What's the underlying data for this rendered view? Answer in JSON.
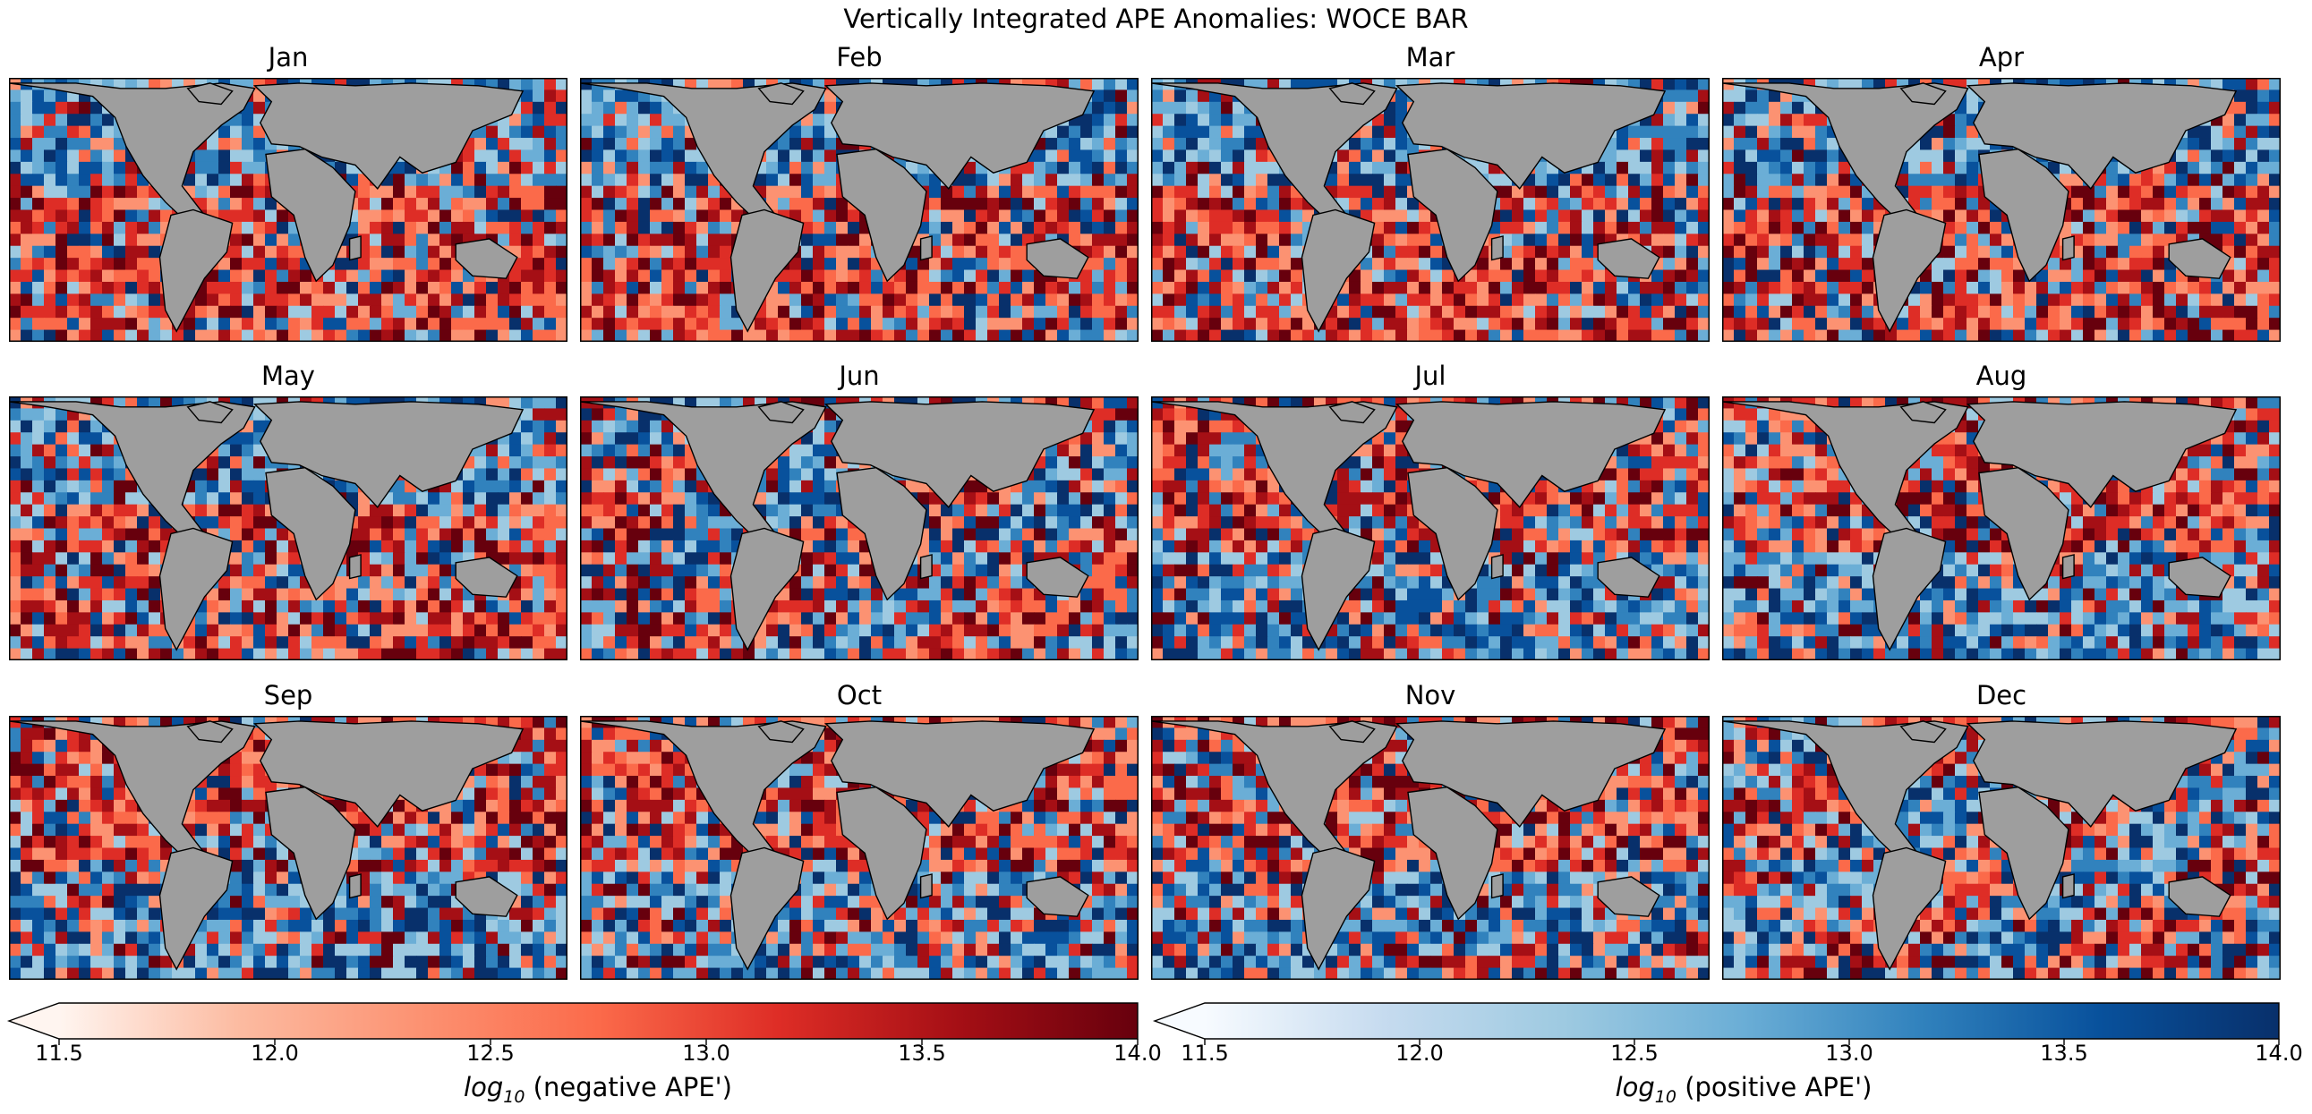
{
  "title": "Vertically Integrated APE Anomalies: WOCE BAR",
  "chart_data": {
    "type": "heatmap",
    "title": "Vertically Integrated APE Anomalies: WOCE BAR",
    "panels": [
      {
        "label": "Jan",
        "regime": "neg-south"
      },
      {
        "label": "Feb",
        "regime": "neg-south"
      },
      {
        "label": "Mar",
        "regime": "neg-south"
      },
      {
        "label": "Apr",
        "regime": "neg-south"
      },
      {
        "label": "May",
        "regime": "neg-south"
      },
      {
        "label": "Jun",
        "regime": "mixed"
      },
      {
        "label": "Jul",
        "regime": "neg-north"
      },
      {
        "label": "Aug",
        "regime": "neg-north"
      },
      {
        "label": "Sep",
        "regime": "neg-north"
      },
      {
        "label": "Oct",
        "regime": "neg-north"
      },
      {
        "label": "Nov",
        "regime": "neg-north"
      },
      {
        "label": "Dec",
        "regime": "mixed"
      }
    ],
    "colorbars": [
      {
        "label_math": "log",
        "label_sub": "10",
        "label_text": " (negative APE')",
        "range": [
          11.5,
          14.0
        ],
        "ticks": [
          "11.5",
          "12.0",
          "12.5",
          "13.0",
          "13.5",
          "14.0"
        ],
        "colormap": "Reds",
        "extend": "min"
      },
      {
        "label_math": "log",
        "label_sub": "10",
        "label_text": " (positive APE')",
        "range": [
          11.5,
          14.0
        ],
        "ticks": [
          "11.5",
          "12.0",
          "12.5",
          "13.0",
          "13.5",
          "14.0"
        ],
        "colormap": "Blues",
        "extend": "min"
      }
    ],
    "colors": {
      "land": "#9e9e9e",
      "reds": [
        "#fff5f0",
        "#fcbba1",
        "#fc9272",
        "#fb6a4a",
        "#de2d26",
        "#a50f15",
        "#67000d"
      ],
      "blues": [
        "#f7fbff",
        "#c6dbef",
        "#9ecae1",
        "#6baed6",
        "#3182bd",
        "#08519c",
        "#08306b"
      ]
    }
  }
}
